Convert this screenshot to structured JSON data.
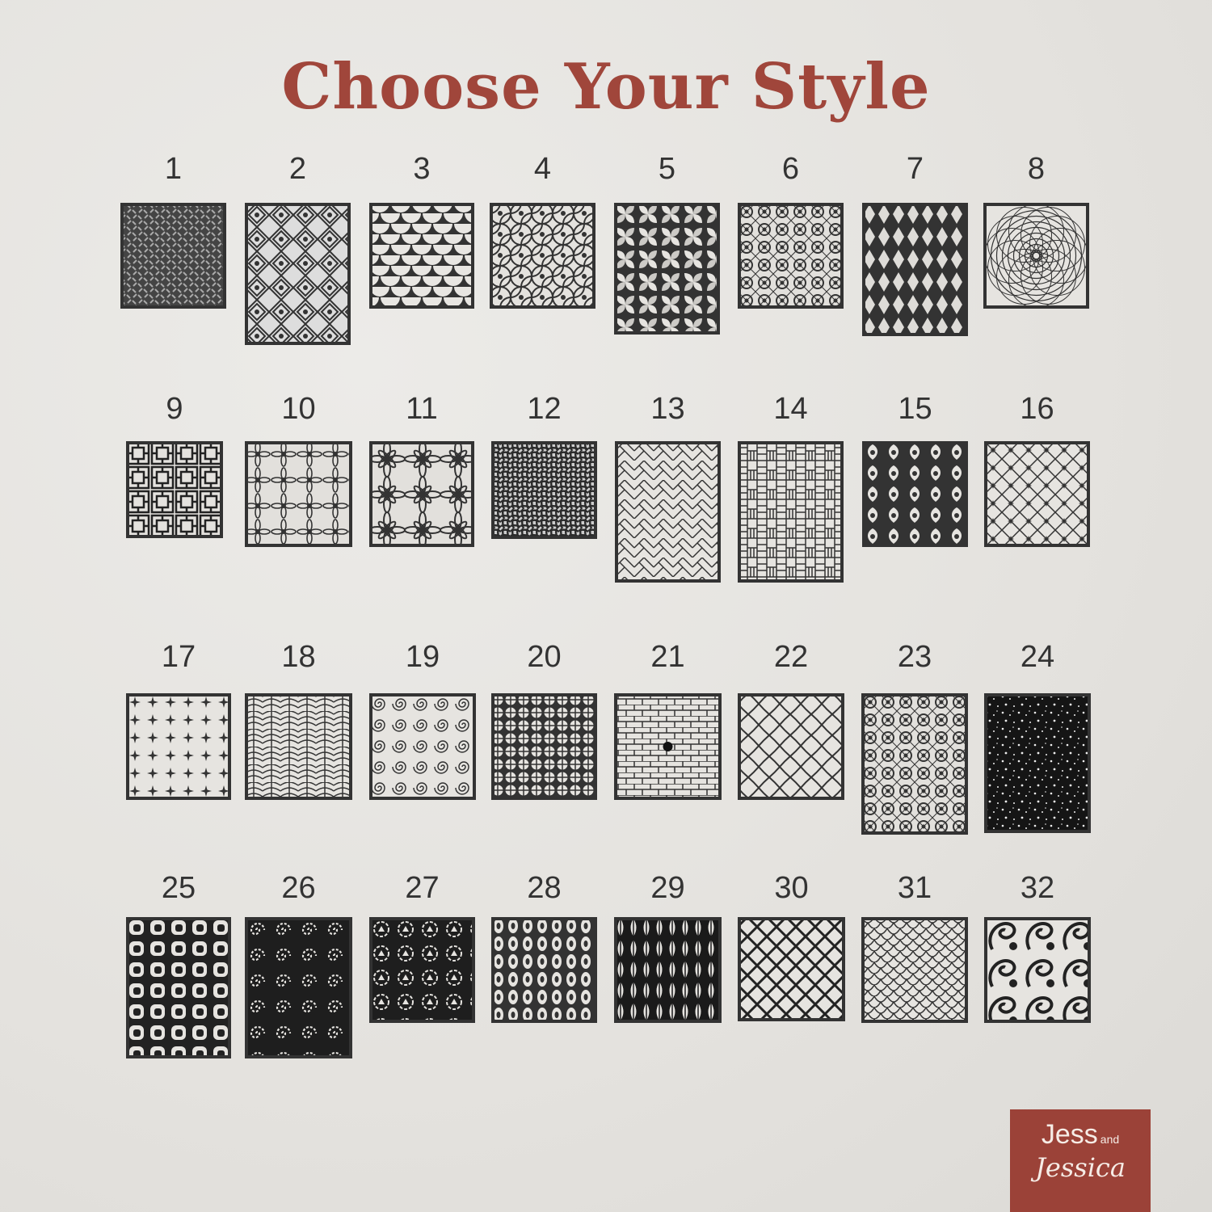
{
  "title": "Choose Your Style",
  "colors": {
    "title": "#a0463b",
    "panel": "#333333",
    "logo_bg": "#9b4238",
    "background": "#e6e4e0"
  },
  "styles": [
    {
      "number": "1",
      "pattern": "diamond-plate"
    },
    {
      "number": "2",
      "pattern": "geometric-floral"
    },
    {
      "number": "3",
      "pattern": "scallops"
    },
    {
      "number": "4",
      "pattern": "flower-of-life"
    },
    {
      "number": "5",
      "pattern": "pinwheel-petals"
    },
    {
      "number": "6",
      "pattern": "moroccan-floral"
    },
    {
      "number": "7",
      "pattern": "diamond-lattice"
    },
    {
      "number": "8",
      "pattern": "spiral-vortex"
    },
    {
      "number": "9",
      "pattern": "chinese-lattice"
    },
    {
      "number": "10",
      "pattern": "daisies"
    },
    {
      "number": "11",
      "pattern": "large-flowers"
    },
    {
      "number": "12",
      "pattern": "woven-mesh"
    },
    {
      "number": "13",
      "pattern": "herringbone"
    },
    {
      "number": "14",
      "pattern": "basketweave"
    },
    {
      "number": "15",
      "pattern": "fleur-tiles"
    },
    {
      "number": "16",
      "pattern": "diamond-stars"
    },
    {
      "number": "17",
      "pattern": "stars"
    },
    {
      "number": "18",
      "pattern": "waves"
    },
    {
      "number": "19",
      "pattern": "swirls"
    },
    {
      "number": "20",
      "pattern": "circle-grid"
    },
    {
      "number": "21",
      "pattern": "radial-cobblestone"
    },
    {
      "number": "22",
      "pattern": "quatrefoil"
    },
    {
      "number": "23",
      "pattern": "moroccan-floral"
    },
    {
      "number": "24",
      "pattern": "scattered-dots"
    },
    {
      "number": "25",
      "pattern": "retro-squares"
    },
    {
      "number": "26",
      "pattern": "spiral-dots"
    },
    {
      "number": "27",
      "pattern": "ornamental"
    },
    {
      "number": "28",
      "pattern": "beads"
    },
    {
      "number": "29",
      "pattern": "leaves"
    },
    {
      "number": "30",
      "pattern": "quatrefoil-bold"
    },
    {
      "number": "31",
      "pattern": "fish-scales"
    },
    {
      "number": "32",
      "pattern": "paisley"
    }
  ],
  "logo": {
    "line1": "Jess",
    "and": "and",
    "line2": "Jessica"
  }
}
